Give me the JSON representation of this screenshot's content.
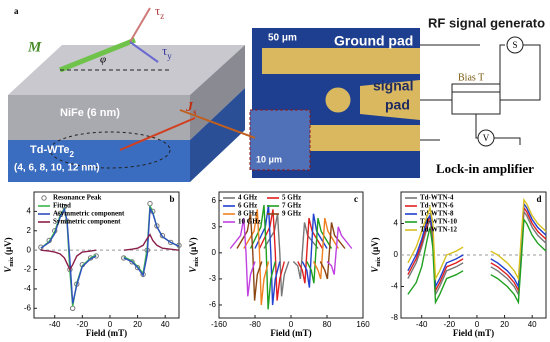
{
  "diagram": {
    "label": "a",
    "magnetization": "M",
    "angle": "φ",
    "torque_z": {
      "text": "τ",
      "sub": "z"
    },
    "torque_y": {
      "text": "τ",
      "sub": "y"
    },
    "layer_top": "NiFe (6 nm)",
    "layer_bottom": {
      "text": "Td-WTe",
      "sub": "2"
    },
    "thickness": "(4, 6, 8, 10, 12 nm)",
    "current": {
      "text": "J",
      "sub": "s"
    },
    "scale_large": "50 μm",
    "ground_pad": "Ground pad",
    "signal_pad": [
      "signal",
      "pad"
    ],
    "scale_small": "10 μm",
    "rf_source": "RF  signal generato",
    "bias_tee": "Bias T",
    "source_symbol": "S",
    "voltmeter_symbol": "V",
    "lock_in": "Lock-in amplifier"
  },
  "chart_data": [
    {
      "type": "line",
      "panel_label": "b",
      "x_label": "Field (mT)",
      "y_label": {
        "text": "V",
        "sub": "mix",
        "unit": "(μV)"
      },
      "xlim": [
        -55,
        50
      ],
      "xticks": [
        -40,
        -20,
        0,
        20,
        40
      ],
      "ylim": [
        -7,
        6
      ],
      "yticks": [
        -6,
        -4,
        -2,
        0,
        2,
        4
      ],
      "zero_line": true,
      "legend_columns": 1,
      "x": [
        -50,
        -44,
        -40,
        -36,
        -33,
        -31,
        -29,
        -27,
        -24,
        -20,
        -14,
        -10,
        0,
        10,
        16,
        20,
        24,
        27,
        29,
        31,
        34,
        38,
        44,
        50
      ],
      "series": [
        {
          "name": "Resonance Peak",
          "color": "#777777",
          "marker": true,
          "values": [
            0.3,
            1.0,
            2.0,
            3.8,
            4.5,
            3.0,
            -2.0,
            -6.0,
            -3.5,
            -1.5,
            -0.8,
            -0.6,
            null,
            -0.8,
            -1.2,
            -1.8,
            -2.5,
            0.0,
            4.8,
            4.0,
            2.5,
            1.5,
            0.8,
            0.5
          ]
        },
        {
          "name": "Fitted",
          "color": "#3cb44b",
          "marker": false,
          "values": [
            0.2,
            0.9,
            1.9,
            3.6,
            4.3,
            2.8,
            -2.2,
            -5.8,
            -3.4,
            -1.6,
            -0.8,
            -0.5,
            null,
            -0.7,
            -1.1,
            -1.7,
            -2.4,
            0.2,
            4.6,
            3.9,
            2.4,
            1.4,
            0.8,
            0.4
          ]
        },
        {
          "name": "Asymmetric component",
          "color": "#2f4fbf",
          "marker": false,
          "values": [
            0.2,
            0.8,
            1.7,
            3.4,
            4.2,
            3.0,
            -1.0,
            -5.5,
            -3.6,
            -1.7,
            -0.9,
            -0.6,
            null,
            -0.8,
            -1.2,
            -1.8,
            -2.6,
            -0.5,
            4.3,
            3.8,
            2.4,
            1.4,
            0.8,
            0.4
          ]
        },
        {
          "name": "Symmetric component",
          "color": "#8b1f4a",
          "marker": false,
          "values": [
            0,
            -0.1,
            -0.2,
            -0.4,
            -0.8,
            -1.4,
            -2.0,
            -1.5,
            -0.6,
            -0.2,
            -0.1,
            0,
            null,
            0,
            0.1,
            0.2,
            0.5,
            1.2,
            1.6,
            1.0,
            0.5,
            0.2,
            0.1,
            0
          ]
        }
      ]
    },
    {
      "type": "line",
      "panel_label": "c",
      "x_label": "Field (mT)",
      "y_label": {
        "text": "V",
        "sub": "mix",
        "unit": "(μV)"
      },
      "xlim": [
        -160,
        160
      ],
      "xticks": [
        -160,
        -80,
        0,
        80,
        160
      ],
      "ylim": [
        -7.5,
        7
      ],
      "yticks": [
        -6,
        -3,
        0,
        3,
        6
      ],
      "zero_line": false,
      "legend_columns": 2,
      "series": [
        {
          "name": "4 GHz",
          "color": "#777777",
          "marker": false,
          "x": [
            -60,
            -37,
            -30,
            -25,
            -21,
            -15,
            -5,
            0,
            5,
            15,
            21,
            25,
            30,
            37,
            60
          ],
          "values": [
            0.5,
            2.5,
            4.5,
            0,
            -5,
            -2.5,
            -1,
            null,
            -1,
            -1.5,
            -3,
            0,
            3.5,
            2,
            0.5
          ]
        },
        {
          "name": "5 GHz",
          "color": "#e02020",
          "marker": false,
          "x": [
            -70,
            -47,
            -40,
            -35,
            -31,
            -25,
            -15,
            0,
            15,
            25,
            31,
            35,
            40,
            47,
            70
          ],
          "values": [
            0.5,
            3,
            5,
            0,
            -5.5,
            -3,
            -1,
            null,
            -1,
            -2,
            -3.5,
            0,
            4,
            2.5,
            0.5
          ]
        },
        {
          "name": "6 GHz",
          "color": "#2040d0",
          "marker": false,
          "x": [
            -80,
            -57,
            -50,
            -45,
            -41,
            -35,
            -25,
            0,
            25,
            35,
            41,
            45,
            50,
            57,
            80
          ],
          "values": [
            0.5,
            3,
            5.5,
            0,
            -6,
            -3,
            -1,
            null,
            -1,
            -2,
            -4,
            0,
            4.5,
            2.5,
            0.5
          ]
        },
        {
          "name": "7 GHz",
          "color": "#20a020",
          "marker": false,
          "x": [
            -90,
            -67,
            -60,
            -55,
            -51,
            -45,
            -35,
            0,
            35,
            45,
            51,
            55,
            60,
            67,
            90
          ],
          "values": [
            0.5,
            3,
            5.5,
            0,
            -6.5,
            -3,
            -1,
            null,
            -1,
            -2,
            -3.5,
            0,
            4,
            2.5,
            0.5
          ]
        },
        {
          "name": "8 GHz",
          "color": "#f08020",
          "marker": false,
          "x": [
            -105,
            -82,
            -75,
            -70,
            -66,
            -60,
            -50,
            0,
            50,
            60,
            66,
            70,
            75,
            82,
            105
          ],
          "values": [
            0.5,
            2.5,
            5,
            0,
            -6,
            -3,
            -1,
            null,
            -1,
            -2,
            -3,
            0,
            4,
            2.5,
            0.5
          ]
        },
        {
          "name": "9 GHz",
          "color": "#8b4513",
          "marker": false,
          "x": [
            -120,
            -97,
            -90,
            -85,
            -81,
            -75,
            -65,
            0,
            65,
            75,
            81,
            85,
            90,
            97,
            120
          ],
          "values": [
            0.5,
            2.5,
            4.5,
            0,
            -5.5,
            -2.5,
            -1,
            null,
            -1,
            -2,
            -3,
            0,
            3.5,
            2,
            0.5
          ]
        },
        {
          "name": "10 GHz",
          "color": "#c040e0",
          "marker": false,
          "x": [
            -135,
            -112,
            -105,
            -100,
            -96,
            -90,
            -80,
            0,
            80,
            90,
            96,
            100,
            105,
            112,
            135
          ],
          "values": [
            0.5,
            2,
            4,
            0,
            -5,
            -2.5,
            -1,
            null,
            -1,
            -1.5,
            -2.5,
            0,
            3,
            2,
            0.5
          ]
        }
      ]
    },
    {
      "type": "line",
      "panel_label": "d",
      "x_label": "Field (mT)",
      "y_label": {
        "text": "V",
        "sub": "mix",
        "unit": "(μV)"
      },
      "xlim": [
        -55,
        50
      ],
      "xticks": [
        -40,
        -20,
        0,
        20,
        40
      ],
      "ylim": [
        -8,
        8
      ],
      "yticks": [
        -8,
        -4,
        0,
        4
      ],
      "zero_line": true,
      "legend_columns": 1,
      "x": [
        -50,
        -44,
        -40,
        -36,
        -34,
        -32,
        -30,
        -27,
        -22,
        -15,
        -10,
        0,
        10,
        15,
        22,
        27,
        30,
        32,
        34,
        36,
        40,
        44,
        50
      ],
      "series": [
        {
          "name": "Td-WTN-4",
          "color": "#777777",
          "marker": false,
          "values": [
            -3,
            -1,
            1,
            3.5,
            4.5,
            2,
            -5,
            -4,
            -2,
            -1.5,
            -1,
            null,
            -1.5,
            -2,
            -3,
            -4,
            -5,
            0,
            5.5,
            5,
            3.5,
            2.5,
            1.5
          ]
        },
        {
          "name": "Td-WTN-6",
          "color": "#e02020",
          "marker": false,
          "values": [
            -2.5,
            -0.5,
            1.5,
            4,
            5,
            2.5,
            -4.5,
            -3.5,
            -1.5,
            -1,
            -0.5,
            null,
            -1,
            -1.5,
            -2.5,
            -3.5,
            -4.5,
            0.5,
            6,
            5.5,
            4,
            3,
            2
          ]
        },
        {
          "name": "Td-WTN-8",
          "color": "#2040d0",
          "marker": false,
          "values": [
            -2,
            0,
            2,
            4.5,
            5,
            3,
            -4,
            -3,
            -1,
            -0.5,
            0,
            null,
            -0.5,
            -1,
            -2,
            -3,
            -4,
            1,
            6.5,
            6,
            4.5,
            3.5,
            2.5
          ]
        },
        {
          "name": "Td-WTN-10",
          "color": "#20a020",
          "marker": false,
          "values": [
            -5,
            -3.5,
            -1.5,
            2,
            3.5,
            1,
            -6,
            -5,
            -3,
            -2.5,
            -2,
            null,
            -2.5,
            -3,
            -4,
            -5,
            -6,
            -1,
            4.5,
            4,
            2.5,
            1.5,
            0.5
          ]
        },
        {
          "name": "Td-WTN-12",
          "color": "#d8c020",
          "marker": false,
          "values": [
            -1,
            1,
            3,
            5,
            6,
            4,
            -3,
            -2,
            0,
            0.5,
            1,
            null,
            0.5,
            0,
            -1,
            -2,
            -3,
            2,
            7,
            6.5,
            5,
            4,
            3
          ]
        }
      ]
    }
  ]
}
